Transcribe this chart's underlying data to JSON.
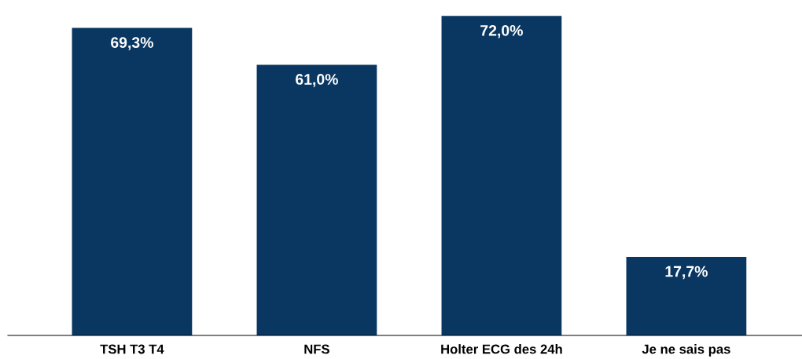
{
  "chart_data": {
    "type": "bar",
    "categories": [
      "TSH T3 T4",
      "NFS",
      "Holter ECG des 24h",
      "Je ne sais pas"
    ],
    "values": [
      69.3,
      61.0,
      72.0,
      17.7
    ],
    "value_labels": [
      "69,3%",
      "61,0%",
      "72,0%",
      "17,7%"
    ],
    "color": "#0a3761",
    "grid": false,
    "legend": false
  }
}
